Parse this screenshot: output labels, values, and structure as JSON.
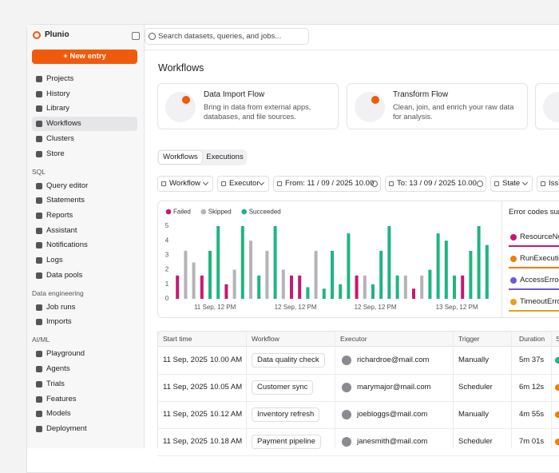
{
  "app": {
    "name": "Plunio",
    "new_button": "+ New entry",
    "search_placeholder": "Search datasets, queries, and jobs..."
  },
  "nav_main": [
    {
      "label": "Projects"
    },
    {
      "label": "History"
    },
    {
      "label": "Library"
    },
    {
      "label": "Workflows",
      "active": true
    },
    {
      "label": "Clusters"
    },
    {
      "label": "Store"
    }
  ],
  "nav_sections": [
    {
      "title": "SQL",
      "items": [
        "Query editor",
        "Statements",
        "Reports",
        "Assistant",
        "Notifications",
        "Logs",
        "Data pools"
      ]
    },
    {
      "title": "Data engineering",
      "items": [
        "Job runs",
        "Imports"
      ]
    },
    {
      "title": "AI/ML",
      "items": [
        "Playground",
        "Agents",
        "Trials",
        "Features",
        "Models",
        "Deployment"
      ]
    }
  ],
  "page": {
    "title": "Workflows",
    "cards": [
      {
        "title": "Data Import Flow",
        "description": "Bring in data from external apps, databases, and file sources."
      },
      {
        "title": "Transform Flow",
        "description": "Clean, join, and enrich your raw data for analysis."
      }
    ],
    "tabs": [
      {
        "label": "Workflows",
        "active": true
      },
      {
        "label": "Executions"
      }
    ],
    "filters": [
      {
        "label": "Workflow",
        "kind": "menu"
      },
      {
        "label": "Executor",
        "kind": "menu"
      },
      {
        "label": "From: 11 / 09 / 2025 10.00",
        "kind": "clear"
      },
      {
        "label": "To: 13 / 09 / 2025 10.00",
        "kind": "clear"
      },
      {
        "label": "State",
        "kind": "menu"
      },
      {
        "label": "Iss",
        "kind": "menu"
      }
    ]
  },
  "chart": {
    "type": "bar",
    "x": [
      0,
      1,
      2,
      3,
      4,
      5,
      6,
      7,
      8,
      9,
      10,
      11,
      12,
      13,
      14,
      15,
      16,
      17,
      18,
      19,
      20,
      21,
      22,
      23,
      24,
      25,
      26,
      27,
      28,
      29,
      30,
      31,
      32,
      33,
      34,
      35,
      36,
      37,
      38
    ],
    "series": [
      {
        "name": "Failed",
        "color": "#c8176f",
        "values": [
          1.6,
          null,
          null,
          1.6,
          null,
          null,
          1,
          null,
          null,
          null,
          null,
          null,
          null,
          null,
          1.6,
          1.6,
          null,
          null,
          null,
          null,
          null,
          null,
          1.6,
          null,
          null,
          null,
          null,
          null,
          null,
          0.7,
          null,
          null,
          null,
          null,
          null,
          1.6,
          null,
          null,
          null
        ]
      },
      {
        "name": "Skipped",
        "color": "#b3b3b8",
        "values": [
          null,
          3.3,
          2.5,
          null,
          null,
          null,
          null,
          2,
          null,
          4,
          null,
          3.3,
          null,
          2,
          null,
          null,
          null,
          3.3,
          null,
          null,
          null,
          null,
          null,
          1.6,
          null,
          null,
          null,
          null,
          1.6,
          null,
          1.6,
          null,
          null,
          null,
          null,
          null,
          null,
          null,
          null
        ]
      },
      {
        "name": "Succeeded",
        "color": "#1fb57f",
        "values": [
          null,
          null,
          null,
          null,
          3.3,
          5,
          null,
          null,
          5,
          null,
          1.6,
          null,
          5,
          null,
          null,
          null,
          0.8,
          null,
          0.7,
          3.3,
          1,
          4.5,
          null,
          null,
          1,
          3.3,
          5,
          1.6,
          null,
          null,
          null,
          2,
          4.5,
          4,
          1.6,
          null,
          3.3,
          5,
          3.7
        ]
      }
    ],
    "xlim": [
      -1,
      39
    ],
    "xticks": [
      {
        "value": 4.6,
        "label": "11 Sep, 12 PM"
      },
      {
        "value": 14.5,
        "label": "12 Sep, 12 PM"
      },
      {
        "value": 24.3,
        "label": "12 Sep, 12 PM"
      },
      {
        "value": 34.3,
        "label": "13 Sep, 12 PM"
      }
    ],
    "ylim": [
      0,
      5
    ],
    "yticks": [
      0,
      1,
      2,
      3,
      4,
      5
    ]
  },
  "error_codes": {
    "title": "Error codes sum",
    "items": [
      {
        "label": "ResourceNo",
        "color": "#c8176f"
      },
      {
        "label": "RunExecutio",
        "color": "#f07d00"
      },
      {
        "label": "AccessError",
        "color": "#6b5bd6"
      },
      {
        "label": "TimeoutErro",
        "color": "#e3a21a"
      }
    ]
  },
  "table": {
    "columns": [
      "Start time",
      "Workflow",
      "Executor",
      "Trigger",
      "Duration",
      "S"
    ],
    "rows": [
      {
        "date": "11 Sep, 2025",
        "time": "10.00 AM",
        "workflow": "Data quality check",
        "executor": "richardroe@mail.com",
        "trigger": "Manually",
        "duration": "5m 37s",
        "status_color": "#1fb57f"
      },
      {
        "date": "11 Sep, 2025",
        "time": "10.05 AM",
        "workflow": "Customer sync",
        "executor": "marymajor@mail.com",
        "trigger": "Scheduler",
        "duration": "6m 12s",
        "status_color": "#f07d00"
      },
      {
        "date": "11 Sep, 2025",
        "time": "10.12 AM",
        "workflow": "Inventory refresh",
        "executor": "joebloggs@mail.com",
        "trigger": "Manually",
        "duration": "4m 55s",
        "status_color": "#f07d00"
      },
      {
        "date": "11 Sep, 2025",
        "time": "10.18 AM",
        "workflow": "Payment pipeline",
        "executor": "janesmith@mail.com",
        "trigger": "Scheduler",
        "duration": "7m 01s",
        "status_color": "#f07d00"
      }
    ]
  }
}
